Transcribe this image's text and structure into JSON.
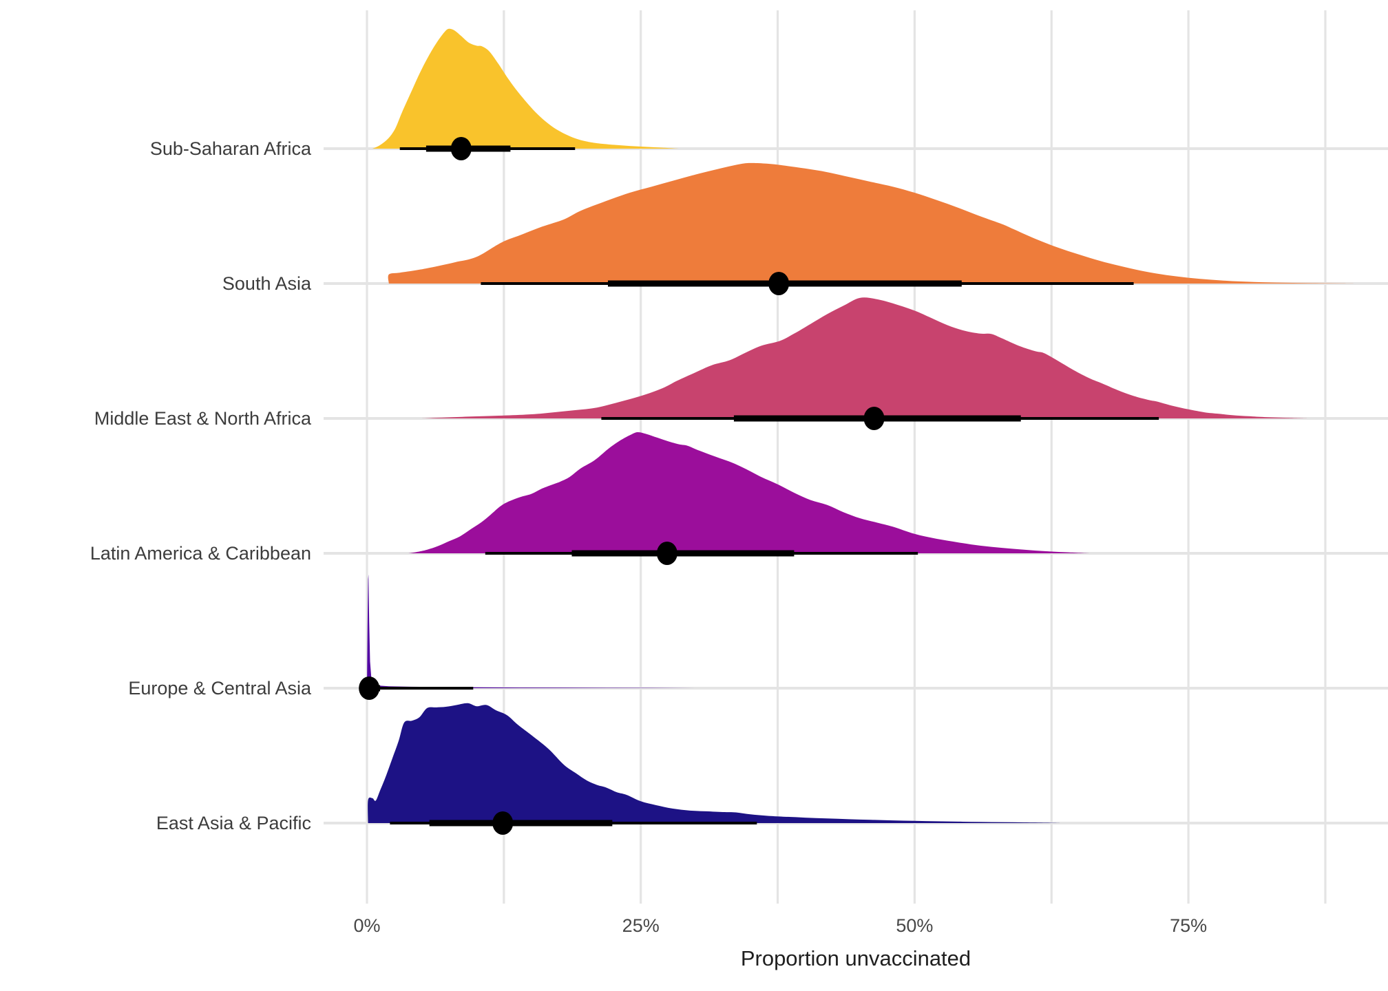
{
  "chart_data": {
    "type": "ridgeline",
    "title": "",
    "xlabel": "Proportion unvaccinated",
    "x_unit": "%",
    "x_ticks": [
      {
        "value": 0,
        "label": "0%"
      },
      {
        "value": 25,
        "label": "25%"
      },
      {
        "value": 50,
        "label": "50%"
      },
      {
        "value": 75,
        "label": "75%"
      }
    ],
    "x_minor_gridlines": [
      12.5,
      37.5,
      62.5,
      87.5
    ],
    "x_axis_range": [
      -4,
      93
    ],
    "grid": true,
    "legend": "none",
    "styles": {
      "background": "#FFFFFF",
      "grid_color": "#E4E4E4",
      "region_label_color": "#3C3C3C",
      "tick_label_color": "#474747",
      "axis_title_color": "#1F1F1F",
      "interval_color": "#000000"
    },
    "regions": [
      {
        "label": "Sub-Saharan Africa",
        "color": "#F9C32C",
        "point_estimate_pct": 8.6,
        "interval_66_pct": [
          5.4,
          13.1
        ],
        "interval_95_pct": [
          3.0,
          19.0
        ],
        "density_peak_pct": 7.5,
        "smooth": true,
        "density_profile": [
          [
            0.5,
            0
          ],
          [
            1.2,
            0.03
          ],
          [
            2,
            0.09
          ],
          [
            2.6,
            0.17
          ],
          [
            3.2,
            0.3
          ],
          [
            4,
            0.46
          ],
          [
            4.8,
            0.62
          ],
          [
            5.6,
            0.76
          ],
          [
            6.4,
            0.88
          ],
          [
            7.1,
            0.965
          ],
          [
            7.5,
            0.99
          ],
          [
            8,
            0.975
          ],
          [
            8.6,
            0.93
          ],
          [
            9.3,
            0.875
          ],
          [
            10,
            0.85
          ],
          [
            10.5,
            0.845
          ],
          [
            11.2,
            0.8
          ],
          [
            12,
            0.7
          ],
          [
            12.8,
            0.59
          ],
          [
            13.6,
            0.49
          ],
          [
            14.5,
            0.39
          ],
          [
            15.4,
            0.3
          ],
          [
            16.3,
            0.225
          ],
          [
            17.2,
            0.165
          ],
          [
            18.1,
            0.12
          ],
          [
            19,
            0.085
          ],
          [
            20,
            0.06
          ],
          [
            21,
            0.045
          ],
          [
            22.5,
            0.032
          ],
          [
            24,
            0.022
          ],
          [
            25.5,
            0.015
          ],
          [
            27,
            0.008
          ],
          [
            28.5,
            0
          ]
        ]
      },
      {
        "label": "South Asia",
        "color": "#EE7C3B",
        "point_estimate_pct": 37.6,
        "interval_66_pct": [
          22.0,
          54.3
        ],
        "interval_95_pct": [
          10.4,
          70.0
        ],
        "density_peak_pct": 35,
        "smooth": true,
        "density_profile": [
          [
            2,
            0
          ],
          [
            2,
            0.075
          ],
          [
            3,
            0.09
          ],
          [
            4.5,
            0.11
          ],
          [
            6,
            0.135
          ],
          [
            8,
            0.175
          ],
          [
            10,
            0.22
          ],
          [
            12.3,
            0.34
          ],
          [
            14,
            0.4
          ],
          [
            16,
            0.47
          ],
          [
            18,
            0.53
          ],
          [
            19.5,
            0.6
          ],
          [
            21.8,
            0.68
          ],
          [
            24,
            0.75
          ],
          [
            26,
            0.8
          ],
          [
            28,
            0.85
          ],
          [
            30,
            0.9
          ],
          [
            32,
            0.945
          ],
          [
            34,
            0.985
          ],
          [
            35,
            0.995
          ],
          [
            36.5,
            0.99
          ],
          [
            38,
            0.975
          ],
          [
            40,
            0.95
          ],
          [
            42,
            0.92
          ],
          [
            44,
            0.88
          ],
          [
            46,
            0.84
          ],
          [
            48,
            0.8
          ],
          [
            50,
            0.75
          ],
          [
            52,
            0.69
          ],
          [
            54,
            0.625
          ],
          [
            56,
            0.555
          ],
          [
            58,
            0.49
          ],
          [
            59,
            0.45
          ],
          [
            61,
            0.37
          ],
          [
            63,
            0.3
          ],
          [
            65,
            0.24
          ],
          [
            67,
            0.185
          ],
          [
            69,
            0.14
          ],
          [
            71,
            0.1
          ],
          [
            73,
            0.07
          ],
          [
            75,
            0.048
          ],
          [
            77,
            0.032
          ],
          [
            79,
            0.02
          ],
          [
            81,
            0.013
          ],
          [
            83,
            0.008
          ],
          [
            85,
            0.005
          ],
          [
            87,
            0.003
          ],
          [
            89,
            0.0015
          ],
          [
            91,
            0
          ]
        ]
      },
      {
        "label": "Middle East & North Africa",
        "color": "#C8436E",
        "point_estimate_pct": 46.3,
        "interval_66_pct": [
          33.5,
          59.7
        ],
        "interval_95_pct": [
          21.4,
          72.3
        ],
        "density_peak_pct": 45,
        "smooth": true,
        "density_profile": [
          [
            5,
            0
          ],
          [
            8,
            0.011
          ],
          [
            12,
            0.023
          ],
          [
            15,
            0.034
          ],
          [
            17,
            0.05
          ],
          [
            19,
            0.068
          ],
          [
            21,
            0.09
          ],
          [
            23,
            0.135
          ],
          [
            25,
            0.185
          ],
          [
            27,
            0.25
          ],
          [
            28.3,
            0.31
          ],
          [
            30,
            0.38
          ],
          [
            31.5,
            0.44
          ],
          [
            33.1,
            0.48
          ],
          [
            34.5,
            0.54
          ],
          [
            36,
            0.6
          ],
          [
            37.7,
            0.64
          ],
          [
            39,
            0.7
          ],
          [
            40.5,
            0.78
          ],
          [
            42,
            0.86
          ],
          [
            43.5,
            0.93
          ],
          [
            45,
            0.995
          ],
          [
            46.5,
            0.985
          ],
          [
            48.2,
            0.945
          ],
          [
            50,
            0.89
          ],
          [
            51.5,
            0.83
          ],
          [
            53,
            0.77
          ],
          [
            54.5,
            0.725
          ],
          [
            56,
            0.7
          ],
          [
            57,
            0.698
          ],
          [
            58,
            0.66
          ],
          [
            59.5,
            0.6
          ],
          [
            61,
            0.555
          ],
          [
            61.8,
            0.54
          ],
          [
            63,
            0.48
          ],
          [
            64.5,
            0.4
          ],
          [
            66,
            0.33
          ],
          [
            67.1,
            0.29
          ],
          [
            68.5,
            0.235
          ],
          [
            70,
            0.185
          ],
          [
            71.5,
            0.15
          ],
          [
            72.1,
            0.14
          ],
          [
            73.5,
            0.105
          ],
          [
            75,
            0.075
          ],
          [
            76.5,
            0.05
          ],
          [
            77.6,
            0.04
          ],
          [
            79,
            0.027
          ],
          [
            80.5,
            0.018
          ],
          [
            82,
            0.011
          ],
          [
            84,
            0.005
          ],
          [
            86,
            0
          ]
        ]
      },
      {
        "label": "Latin America & Caribbean",
        "color": "#9B0E9B",
        "point_estimate_pct": 27.4,
        "interval_66_pct": [
          18.7,
          39.0
        ],
        "interval_95_pct": [
          10.8,
          50.3
        ],
        "density_peak_pct": 24.7,
        "smooth": true,
        "density_profile": [
          [
            3.8,
            0
          ],
          [
            4.5,
            0.01
          ],
          [
            5.5,
            0.03
          ],
          [
            6.5,
            0.06
          ],
          [
            7.5,
            0.1
          ],
          [
            8.5,
            0.14
          ],
          [
            9.5,
            0.2
          ],
          [
            10.5,
            0.26
          ],
          [
            11.3,
            0.32
          ],
          [
            12.2,
            0.39
          ],
          [
            13,
            0.43
          ],
          [
            14,
            0.465
          ],
          [
            15,
            0.49
          ],
          [
            16,
            0.535
          ],
          [
            17,
            0.57
          ],
          [
            17.6,
            0.59
          ],
          [
            18.5,
            0.63
          ],
          [
            19.5,
            0.7
          ],
          [
            20.8,
            0.77
          ],
          [
            22,
            0.86
          ],
          [
            23,
            0.925
          ],
          [
            24,
            0.975
          ],
          [
            24.7,
            1.0
          ],
          [
            25.5,
            0.985
          ],
          [
            26.5,
            0.955
          ],
          [
            27.5,
            0.925
          ],
          [
            28.5,
            0.9
          ],
          [
            29.2,
            0.89
          ],
          [
            30,
            0.86
          ],
          [
            31,
            0.825
          ],
          [
            32.2,
            0.785
          ],
          [
            33.3,
            0.75
          ],
          [
            34.5,
            0.7
          ],
          [
            36,
            0.63
          ],
          [
            37.5,
            0.57
          ],
          [
            39,
            0.5
          ],
          [
            40.5,
            0.44
          ],
          [
            42,
            0.4
          ],
          [
            43.5,
            0.34
          ],
          [
            45,
            0.29
          ],
          [
            46.5,
            0.255
          ],
          [
            48,
            0.22
          ],
          [
            50,
            0.16
          ],
          [
            52,
            0.12
          ],
          [
            54,
            0.09
          ],
          [
            56,
            0.063
          ],
          [
            58,
            0.045
          ],
          [
            60,
            0.03
          ],
          [
            62,
            0.017
          ],
          [
            64,
            0.008
          ],
          [
            66,
            0
          ]
        ]
      },
      {
        "label": "Europe & Central Asia",
        "color": "#5206A3",
        "point_estimate_pct": 0.2,
        "interval_66_pct": [
          0.0,
          1.2
        ],
        "interval_95_pct": [
          0.0,
          9.7
        ],
        "density_peak_pct": 0.15,
        "smooth": false,
        "density_profile": [
          [
            0,
            0
          ],
          [
            0.05,
            0.5
          ],
          [
            0.1,
            0.9
          ],
          [
            0.14,
            0.94
          ],
          [
            0.2,
            0.55
          ],
          [
            0.28,
            0.22
          ],
          [
            0.4,
            0.08
          ],
          [
            0.6,
            0.035
          ],
          [
            1,
            0.022
          ],
          [
            2,
            0.016
          ],
          [
            4,
            0.012
          ],
          [
            7,
            0.009
          ],
          [
            10,
            0.007
          ],
          [
            14,
            0.005
          ],
          [
            18,
            0.004
          ],
          [
            22,
            0.003
          ],
          [
            26,
            0.002
          ],
          [
            30,
            0
          ]
        ]
      },
      {
        "label": "East Asia & Pacific",
        "color": "#1D1285",
        "point_estimate_pct": 12.4,
        "interval_66_pct": [
          5.7,
          22.4
        ],
        "interval_95_pct": [
          2.1,
          35.6
        ],
        "density_peak_pct": 9.2,
        "smooth": true,
        "density_profile": [
          [
            0.1,
            0
          ],
          [
            0.1,
            0.19
          ],
          [
            0.5,
            0.205
          ],
          [
            0.8,
            0.185
          ],
          [
            1.2,
            0.27
          ],
          [
            1.7,
            0.38
          ],
          [
            2.3,
            0.53
          ],
          [
            2.9,
            0.68
          ],
          [
            3.4,
            0.83
          ],
          [
            4.1,
            0.845
          ],
          [
            4.8,
            0.875
          ],
          [
            5.5,
            0.95
          ],
          [
            6.3,
            0.955
          ],
          [
            7.2,
            0.96
          ],
          [
            8.2,
            0.975
          ],
          [
            9.2,
            0.99
          ],
          [
            10,
            0.965
          ],
          [
            10.9,
            0.975
          ],
          [
            11.8,
            0.93
          ],
          [
            12.8,
            0.89
          ],
          [
            13.8,
            0.81
          ],
          [
            15.1,
            0.72
          ],
          [
            16.6,
            0.61
          ],
          [
            18,
            0.48
          ],
          [
            19.1,
            0.41
          ],
          [
            20.1,
            0.35
          ],
          [
            21,
            0.315
          ],
          [
            21.8,
            0.295
          ],
          [
            22.8,
            0.255
          ],
          [
            23.7,
            0.233
          ],
          [
            25,
            0.18
          ],
          [
            26.4,
            0.148
          ],
          [
            27.9,
            0.12
          ],
          [
            29.5,
            0.103
          ],
          [
            31,
            0.097
          ],
          [
            32.5,
            0.091
          ],
          [
            33.7,
            0.088
          ],
          [
            35,
            0.072
          ],
          [
            36.5,
            0.06
          ],
          [
            38,
            0.053
          ],
          [
            40,
            0.045
          ],
          [
            42,
            0.038
          ],
          [
            44,
            0.032
          ],
          [
            46,
            0.027
          ],
          [
            48,
            0.022
          ],
          [
            50,
            0.019
          ],
          [
            52,
            0.015
          ],
          [
            54,
            0.012
          ],
          [
            56,
            0.009
          ],
          [
            58,
            0.007
          ],
          [
            60,
            0.005
          ],
          [
            62,
            0.003
          ],
          [
            63.5,
            0
          ]
        ]
      }
    ]
  }
}
